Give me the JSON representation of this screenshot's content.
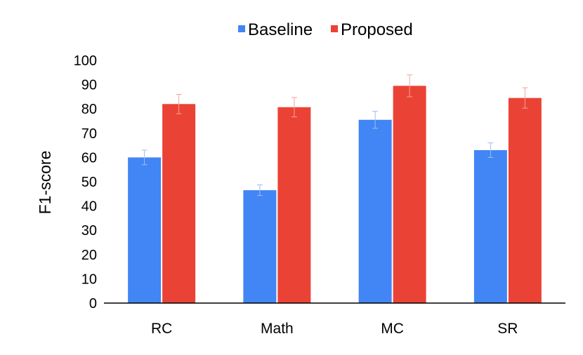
{
  "chart_data": {
    "type": "bar",
    "title": "",
    "xlabel": "",
    "ylabel": "F1-score",
    "ylim": [
      0,
      100
    ],
    "yticks": [
      0,
      10,
      20,
      30,
      40,
      50,
      60,
      70,
      80,
      90,
      100
    ],
    "categories": [
      "RC",
      "Math",
      "MC",
      "SR"
    ],
    "series": [
      {
        "name": "Baseline",
        "color": "#4285f4",
        "values": [
          60,
          46.5,
          75.5,
          63
        ],
        "errors": [
          3,
          2.2,
          3.5,
          3
        ]
      },
      {
        "name": "Proposed",
        "color": "#ea4335",
        "values": [
          82,
          80.7,
          89.5,
          84.5
        ],
        "errors": [
          4,
          4,
          4.5,
          4.2
        ]
      }
    ],
    "legend_position": "top-center",
    "grid": false
  }
}
